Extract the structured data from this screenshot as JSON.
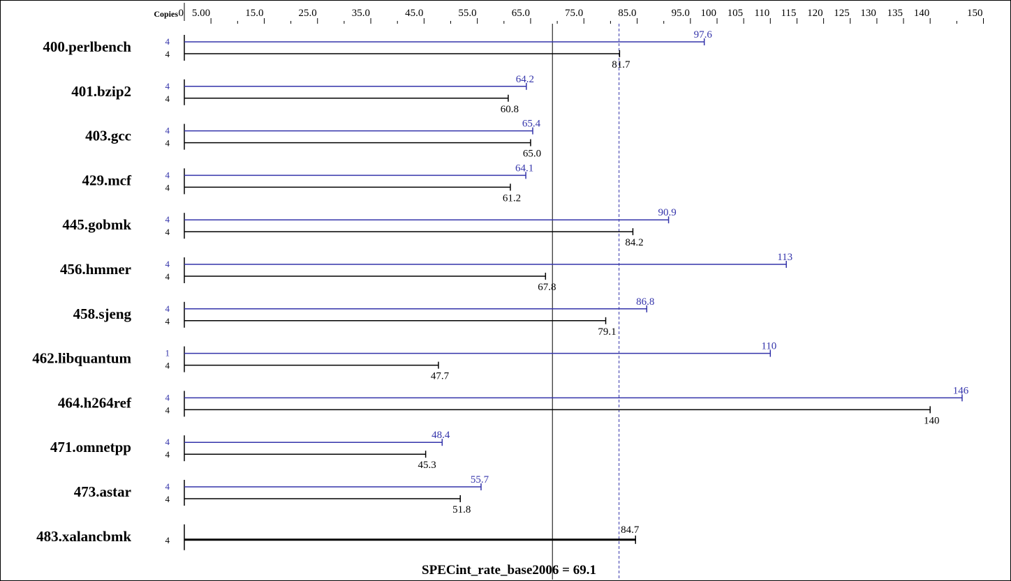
{
  "chart_data": {
    "type": "bar",
    "header": {
      "copies_label": "Copies"
    },
    "x_axis": {
      "ticks": [
        {
          "value": 0,
          "label": "0"
        },
        {
          "value": 5,
          "label": "5.00"
        },
        {
          "value": 15,
          "label": "15.0"
        },
        {
          "value": 25,
          "label": "25.0"
        },
        {
          "value": 35,
          "label": "35.0"
        },
        {
          "value": 45,
          "label": "45.0"
        },
        {
          "value": 55,
          "label": "55.0"
        },
        {
          "value": 65,
          "label": "65.0"
        },
        {
          "value": 75,
          "label": "75.0"
        },
        {
          "value": 85,
          "label": "85.0"
        },
        {
          "value": 95,
          "label": "95.0"
        },
        {
          "value": 100,
          "label": "100"
        },
        {
          "value": 105,
          "label": "105"
        },
        {
          "value": 110,
          "label": "110"
        },
        {
          "value": 115,
          "label": "115"
        },
        {
          "value": 120,
          "label": "120"
        },
        {
          "value": 125,
          "label": "125"
        },
        {
          "value": 130,
          "label": "130"
        },
        {
          "value": 135,
          "label": "135"
        },
        {
          "value": 140,
          "label": "140"
        },
        {
          "value": 150,
          "label": "150"
        }
      ],
      "minor_ticks": [
        10,
        20,
        30,
        40,
        50,
        60,
        70,
        80,
        90,
        145
      ],
      "xlim": [
        0,
        150
      ]
    },
    "colors": {
      "peak": "#3333aa",
      "base": "#000000"
    },
    "reference_lines": [
      {
        "kind": "base",
        "value": 69.1,
        "style": "solid"
      },
      {
        "kind": "peak",
        "value": 81.6,
        "style": "dashed"
      }
    ],
    "footer_text": "SPECint_rate_base2006 = 69.1",
    "benchmarks": [
      {
        "name": "400.perlbench",
        "peak_copies": "4",
        "peak": 97.6,
        "peak_label": "97.6",
        "base_copies": "4",
        "base": 81.7,
        "base_label": "81.7"
      },
      {
        "name": "401.bzip2",
        "peak_copies": "4",
        "peak": 64.2,
        "peak_label": "64.2",
        "base_copies": "4",
        "base": 60.8,
        "base_label": "60.8"
      },
      {
        "name": "403.gcc",
        "peak_copies": "4",
        "peak": 65.4,
        "peak_label": "65.4",
        "base_copies": "4",
        "base": 65.0,
        "base_label": "65.0"
      },
      {
        "name": "429.mcf",
        "peak_copies": "4",
        "peak": 64.1,
        "peak_label": "64.1",
        "base_copies": "4",
        "base": 61.2,
        "base_label": "61.2"
      },
      {
        "name": "445.gobmk",
        "peak_copies": "4",
        "peak": 90.9,
        "peak_label": "90.9",
        "base_copies": "4",
        "base": 84.2,
        "base_label": "84.2"
      },
      {
        "name": "456.hmmer",
        "peak_copies": "4",
        "peak": 113,
        "peak_label": "113",
        "base_copies": "4",
        "base": 67.8,
        "base_label": "67.8"
      },
      {
        "name": "458.sjeng",
        "peak_copies": "4",
        "peak": 86.8,
        "peak_label": "86.8",
        "base_copies": "4",
        "base": 79.1,
        "base_label": "79.1"
      },
      {
        "name": "462.libquantum",
        "peak_copies": "1",
        "peak": 110,
        "peak_label": "110",
        "base_copies": "4",
        "base": 47.7,
        "base_label": "47.7"
      },
      {
        "name": "464.h264ref",
        "peak_copies": "4",
        "peak": 146,
        "peak_label": "146",
        "base_copies": "4",
        "base": 140,
        "base_label": "140"
      },
      {
        "name": "471.omnetpp",
        "peak_copies": "4",
        "peak": 48.4,
        "peak_label": "48.4",
        "base_copies": "4",
        "base": 45.3,
        "base_label": "45.3"
      },
      {
        "name": "473.astar",
        "peak_copies": "4",
        "peak": 55.7,
        "peak_label": "55.7",
        "base_copies": "4",
        "base": 51.8,
        "base_label": "51.8"
      },
      {
        "name": "483.xalancbmk",
        "peak_copies": null,
        "peak": null,
        "peak_label": null,
        "base_copies": "4",
        "base": 84.7,
        "base_label": "84.7"
      }
    ]
  }
}
